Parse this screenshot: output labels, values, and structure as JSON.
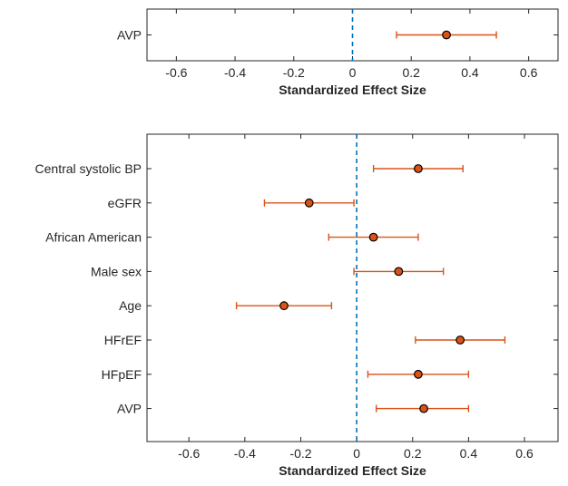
{
  "chart_data": [
    {
      "type": "scatter",
      "subtype": "forest-plot",
      "title": "",
      "xlabel": "Standardized Effect Size",
      "ylabel": "",
      "xlim": [
        -0.7,
        0.7
      ],
      "xticks": [
        -0.6,
        -0.4,
        -0.2,
        0,
        0.2,
        0.4,
        0.6
      ],
      "xtick_labels": [
        "-0.6",
        "-0.4",
        "-0.2",
        "0",
        "0.2",
        "0.4",
        "0.6"
      ],
      "reference_line": 0,
      "grid": false,
      "categories": [
        "AVP"
      ],
      "estimates": [
        0.32
      ],
      "ci_lower": [
        0.15
      ],
      "ci_upper": [
        0.49
      ]
    },
    {
      "type": "scatter",
      "subtype": "forest-plot",
      "title": "",
      "xlabel": "Standardized Effect Size",
      "ylabel": "",
      "xlim": [
        -0.75,
        0.72
      ],
      "xticks": [
        -0.6,
        -0.4,
        -0.2,
        0,
        0.2,
        0.4,
        0.6
      ],
      "xtick_labels": [
        "-0.6",
        "-0.4",
        "-0.2",
        "0",
        "0.2",
        "0.4",
        "0.6"
      ],
      "reference_line": 0,
      "grid": false,
      "categories": [
        "Central systolic BP",
        "eGFR",
        "African American",
        "Male sex",
        "Age",
        "HFrEF",
        "HFpEF",
        "AVP"
      ],
      "estimates": [
        0.22,
        -0.17,
        0.06,
        0.15,
        -0.26,
        0.37,
        0.22,
        0.24
      ],
      "ci_lower": [
        0.06,
        -0.33,
        -0.1,
        -0.01,
        -0.43,
        0.21,
        0.04,
        0.07
      ],
      "ci_upper": [
        0.38,
        -0.01,
        0.22,
        0.31,
        -0.09,
        0.53,
        0.4,
        0.4
      ]
    }
  ],
  "colors": {
    "marker_fill": "#d95319",
    "ci_line": "#d95319",
    "reference_line": "#0072bd",
    "axis": "#262626"
  }
}
